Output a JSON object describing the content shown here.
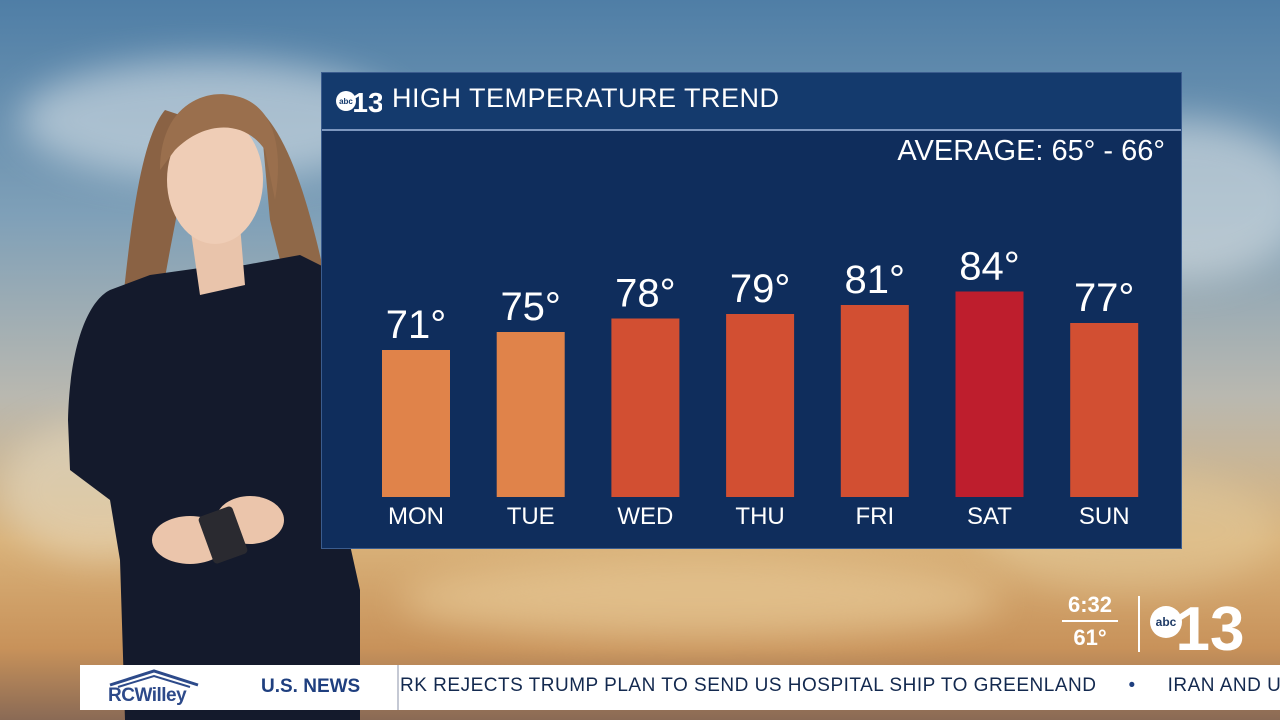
{
  "panel": {
    "title": "HIGH TEMPERATURE TREND",
    "average": "AVERAGE: 65° - 66°",
    "logo_text": "13",
    "logo_abc": "abc"
  },
  "chart_data": {
    "type": "bar",
    "title": "HIGH TEMPERATURE TREND",
    "categories": [
      "MON",
      "TUE",
      "WED",
      "THU",
      "FRI",
      "SAT",
      "SUN"
    ],
    "values": [
      71,
      75,
      78,
      79,
      81,
      84,
      77
    ],
    "value_labels": [
      "71°",
      "75°",
      "78°",
      "79°",
      "81°",
      "84°",
      "77°"
    ],
    "bar_colors": [
      "#e0834a",
      "#e0834a",
      "#d24f32",
      "#d24f32",
      "#d24f32",
      "#be1e2d",
      "#d24f32"
    ],
    "annotation": "AVERAGE: 65° - 66°",
    "ylim": [
      0,
      90
    ]
  },
  "station": {
    "time": "6:32",
    "temp": "61°",
    "logo_text": "13",
    "logo_abc": "abc"
  },
  "ticker": {
    "sponsor": "RCWilley",
    "category": "U.S. NEWS",
    "headline": "RK REJECTS TRUMP PLAN TO SEND US HOSPITAL SHIP TO GREENLAND",
    "next_headline": "IRAN AND U"
  },
  "colors": {
    "panel_bg": "#0f2d5c",
    "header_bg": "#143a6d",
    "warm": "#e0834a",
    "hot": "#d24f32",
    "hottest": "#be1e2d"
  }
}
